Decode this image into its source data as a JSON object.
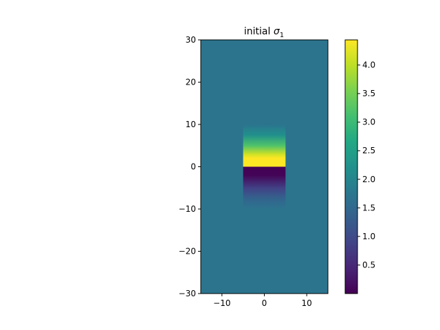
{
  "chart_data": {
    "type": "heatmap",
    "title_main": "initial",
    "title_symbol": "σ",
    "title_subscript": "1",
    "colormap": "viridis",
    "xlim": [
      -15,
      15
    ],
    "ylim": [
      -30,
      30
    ],
    "x_ticks": [
      -10,
      0,
      10
    ],
    "x_tick_labels": [
      "−10",
      "0",
      "10"
    ],
    "y_ticks": [
      -30,
      -20,
      -10,
      0,
      10,
      20,
      30
    ],
    "y_tick_labels": [
      "−30",
      "−20",
      "−10",
      "0",
      "10",
      "20",
      "30"
    ],
    "background_value": 1.7,
    "block": {
      "x_range": [
        -5,
        5
      ],
      "profile": [
        {
          "y": 10,
          "value": 1.7
        },
        {
          "y": 7.5,
          "value": 2.2
        },
        {
          "y": 5,
          "value": 3.2
        },
        {
          "y": 3,
          "value": 4.1
        },
        {
          "y": 2,
          "value": 4.44
        },
        {
          "y": 0.001,
          "value": 4.44
        },
        {
          "y": 0,
          "value": 0.0
        },
        {
          "y": -2,
          "value": 0.04
        },
        {
          "y": -5,
          "value": 0.85
        },
        {
          "y": -7.5,
          "value": 1.4
        },
        {
          "y": -10,
          "value": 1.7
        }
      ]
    },
    "colorbar": {
      "vmin": 0.0,
      "vmax": 4.44,
      "ticks": [
        0.5,
        1.0,
        1.5,
        2.0,
        2.5,
        3.0,
        3.5,
        4.0
      ],
      "tick_labels": [
        "0.5",
        "1.0",
        "1.5",
        "2.0",
        "2.5",
        "3.0",
        "3.5",
        "4.0"
      ]
    }
  }
}
